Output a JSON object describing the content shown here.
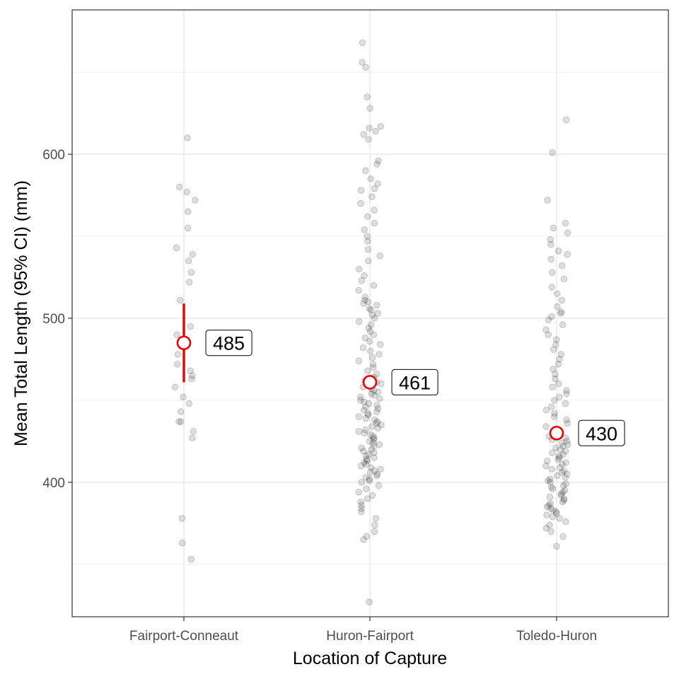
{
  "chart_data": {
    "type": "scatter",
    "title": "",
    "xlabel": "Location of Capture",
    "ylabel": "Mean Total Length (95% CI) (mm)",
    "categories": [
      "Fairport-Conneaut",
      "Huron-Fairport",
      "Toledo-Huron"
    ],
    "ylim": [
      318,
      688
    ],
    "y_ticks": [
      400,
      500,
      600
    ],
    "grid": true,
    "colors": {
      "points": "#000000",
      "mean": "#ee0000",
      "grid": "#ebebeb",
      "panel_border": "#333333"
    },
    "means": [
      {
        "category": "Fairport-Conneaut",
        "mean": 485,
        "ci_low": 461,
        "ci_high": 509,
        "label": "485"
      },
      {
        "category": "Huron-Fairport",
        "mean": 461,
        "ci_low": 458,
        "ci_high": 464,
        "label": "461"
      },
      {
        "category": "Toledo-Huron",
        "mean": 430,
        "ci_low": 427,
        "ci_high": 433,
        "label": "430"
      }
    ],
    "series": [
      {
        "category": "Fairport-Conneaut",
        "values": [
          610,
          580,
          577,
          572,
          565,
          555,
          543,
          539,
          535,
          528,
          522,
          511,
          495,
          490,
          485,
          478,
          472,
          468,
          465,
          463,
          458,
          452,
          448,
          443,
          437,
          437,
          431,
          427,
          378,
          363,
          353
        ]
      },
      {
        "category": "Huron-Fairport",
        "values": [
          668,
          656,
          653,
          635,
          628,
          617,
          616,
          614,
          612,
          609,
          596,
          594,
          590,
          585,
          582,
          579,
          578,
          574,
          570,
          566,
          562,
          558,
          554,
          550,
          547,
          542,
          538,
          535,
          530,
          526,
          523,
          520,
          517,
          513,
          511,
          510,
          509,
          508,
          506,
          505,
          503,
          502,
          500,
          498,
          496,
          494,
          492,
          490,
          488,
          486,
          484,
          482,
          480,
          478,
          476,
          474,
          472,
          470,
          468,
          466,
          464,
          462,
          461,
          460,
          459,
          458,
          457,
          456,
          455,
          454,
          453,
          452,
          451,
          450,
          449,
          448,
          447,
          446,
          445,
          444,
          443,
          442,
          441,
          440,
          439,
          438,
          437,
          436,
          435,
          434,
          433,
          432,
          431,
          430,
          429,
          428,
          427,
          426,
          425,
          424,
          423,
          422,
          421,
          420,
          419,
          418,
          417,
          416,
          415,
          414,
          413,
          412,
          411,
          410,
          409,
          408,
          407,
          406,
          405,
          404,
          403,
          402,
          401,
          400,
          398,
          396,
          394,
          392,
          390,
          388,
          386,
          384,
          382,
          378,
          374,
          370,
          367,
          365,
          327
        ]
      },
      {
        "category": "Toledo-Huron",
        "values": [
          621,
          601,
          572,
          558,
          555,
          552,
          548,
          545,
          541,
          539,
          536,
          532,
          528,
          524,
          519,
          515,
          511,
          507,
          504,
          503,
          501,
          499,
          496,
          493,
          490,
          487,
          484,
          481,
          478,
          475,
          472,
          469,
          466,
          463,
          460,
          458,
          456,
          454,
          452,
          450,
          448,
          446,
          444,
          442,
          440,
          438,
          436,
          434,
          432,
          430,
          428,
          427,
          426,
          425,
          424,
          423,
          422,
          421,
          420,
          419,
          418,
          417,
          416,
          415,
          414,
          413,
          412,
          411,
          410,
          409,
          408,
          407,
          406,
          405,
          404,
          403,
          402,
          401,
          400,
          399,
          398,
          397,
          396,
          395,
          394,
          393,
          392,
          391,
          390,
          389,
          388,
          387,
          386,
          385,
          384,
          383,
          382,
          381,
          380,
          379,
          378,
          376,
          374,
          372,
          370,
          367,
          361
        ]
      }
    ]
  }
}
